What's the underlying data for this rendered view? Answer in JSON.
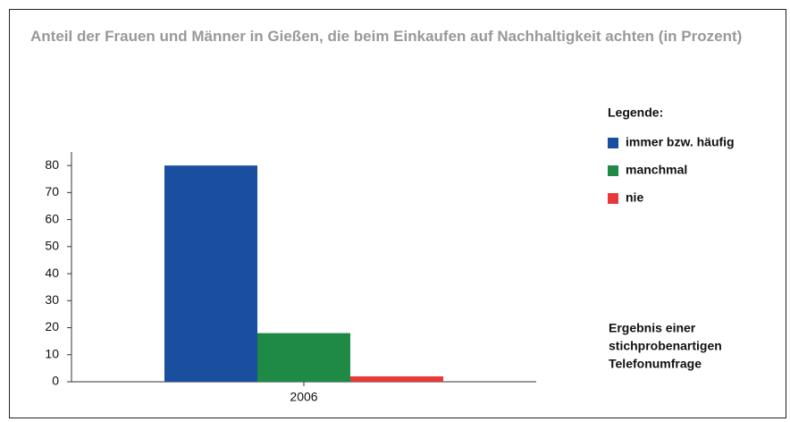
{
  "chart_data": {
    "type": "bar",
    "title": "Anteil der Frauen und Männer in Gießen, die beim Einkaufen auf Nachhaltigkeit achten (in Prozent)",
    "categories": [
      "2006"
    ],
    "series": [
      {
        "name": "immer bzw. häufig",
        "color": "#1a4fa0",
        "values": [
          80
        ]
      },
      {
        "name": "manchmal",
        "color": "#1e8a45",
        "values": [
          18
        ]
      },
      {
        "name": "nie",
        "color": "#e8383a",
        "values": [
          2
        ]
      }
    ],
    "ylim": [
      0,
      85
    ],
    "yticks": [
      0,
      10,
      20,
      30,
      40,
      50,
      60,
      70,
      80
    ],
    "legend_title": "Legende:",
    "annotation": [
      "Ergebnis einer",
      "stichprobenartigen",
      "Telefonumfrage"
    ]
  }
}
